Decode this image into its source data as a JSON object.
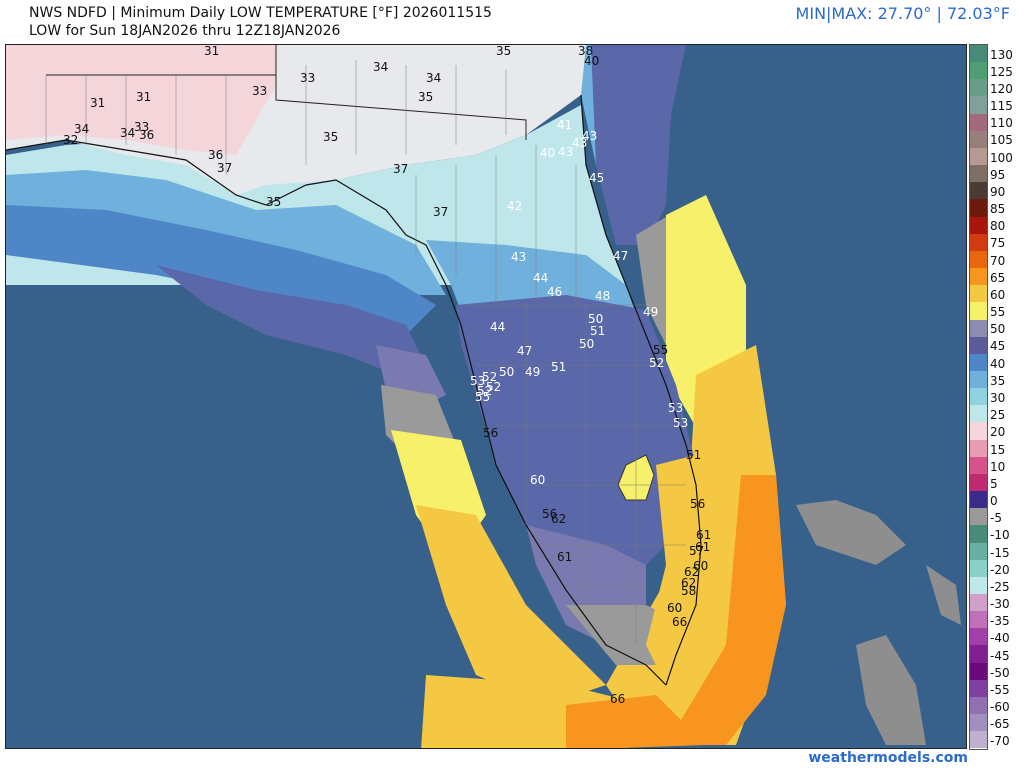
{
  "header": {
    "title_line1": "NWS NDFD | Minimum Daily LOW TEMPERATURE [°F]  2026011515",
    "title_line2": "LOW for Sun 18JAN2026 thru 12Z18JAN2026",
    "minmax": "MIN|MAX:  27.70°  | 72.03°F"
  },
  "footer": {
    "credit": "weathermodels.com"
  },
  "colors": {
    "ocean": "#37608a",
    "north_land": "#e8e9ec",
    "warm_pink": "#f4d5da",
    "light_cyan": "#bfe6ea",
    "aqua": "#8fd3e0",
    "light_blue": "#6fb0dc",
    "blue": "#4f86c8",
    "slate_blue": "#5a67a8",
    "purple": "#5b5b9a",
    "gray": "#9a9a9a",
    "yellow": "#f6f06a",
    "gold": "#f5c843",
    "orange": "#f7951f",
    "bahamas": "#8e8e8e"
  },
  "scale": {
    "labels": [
      "130",
      "125",
      "120",
      "115",
      "110",
      "105",
      "100",
      "95",
      "90",
      "85",
      "80",
      "75",
      "70",
      "65",
      "60",
      "55",
      "50",
      "45",
      "40",
      "35",
      "30",
      "25",
      "20",
      "15",
      "10",
      "5",
      "0",
      "-5",
      "-10",
      "-15",
      "-20",
      "-25",
      "-30",
      "-35",
      "-40",
      "-45",
      "-50",
      "-55",
      "-60",
      "-65",
      "-70"
    ],
    "colors": [
      "#4a8a7a",
      "#4e9d73",
      "#6a9d86",
      "#7fa19a",
      "#a26a7c",
      "#9a7e7e",
      "#b69a92",
      "#7d6e66",
      "#4c3a34",
      "#6e1a0c",
      "#a8160c",
      "#d23a12",
      "#e8660e",
      "#f7951f",
      "#f5c843",
      "#f6f06a",
      "#8c8cb0",
      "#5b5b9a",
      "#4f86c8",
      "#6fb0dc",
      "#8fd3e0",
      "#bfe6ea",
      "#f4d5da",
      "#e89cb0",
      "#d6528a",
      "#c02a70",
      "#3a2a8a",
      "#9a9a9a",
      "#4a8a7a",
      "#6ab0a0",
      "#8ad0c8",
      "#c0e8ea",
      "#d0a0c8",
      "#c070b8",
      "#a040a8",
      "#802090",
      "#6a0a7a",
      "#8040a0",
      "#9070b0",
      "#a090c0",
      "#c0b0d0"
    ]
  },
  "temps": [
    {
      "v": "31"
    },
    {
      "v": "35"
    },
    {
      "v": "38"
    },
    {
      "v": "40"
    },
    {
      "v": "33"
    },
    {
      "v": "34"
    },
    {
      "v": "34"
    },
    {
      "v": "31"
    },
    {
      "v": "31"
    },
    {
      "v": "33"
    },
    {
      "v": "35"
    },
    {
      "v": "34"
    },
    {
      "v": "32"
    },
    {
      "v": "34"
    },
    {
      "v": "33"
    },
    {
      "v": "36"
    },
    {
      "v": "35"
    },
    {
      "v": "41"
    },
    {
      "v": "43"
    },
    {
      "v": "43"
    },
    {
      "v": "40"
    },
    {
      "v": "43"
    },
    {
      "v": "36"
    },
    {
      "v": "37"
    },
    {
      "v": "37"
    },
    {
      "v": "45"
    },
    {
      "v": "35"
    },
    {
      "v": "37"
    },
    {
      "v": "42"
    },
    {
      "v": "47"
    },
    {
      "v": "43"
    },
    {
      "v": "44"
    },
    {
      "v": "46"
    },
    {
      "v": "48"
    },
    {
      "v": "49"
    },
    {
      "v": "50"
    },
    {
      "v": "51"
    },
    {
      "v": "44"
    },
    {
      "v": "50"
    },
    {
      "v": "47"
    },
    {
      "v": "55"
    },
    {
      "v": "52"
    },
    {
      "v": "50"
    },
    {
      "v": "49"
    },
    {
      "v": "51"
    },
    {
      "v": "53"
    },
    {
      "v": "52"
    },
    {
      "v": "52"
    },
    {
      "v": "55"
    },
    {
      "v": "52"
    },
    {
      "v": "53"
    },
    {
      "v": "53"
    },
    {
      "v": "56"
    },
    {
      "v": "51"
    },
    {
      "v": "60"
    },
    {
      "v": "56"
    },
    {
      "v": "56"
    },
    {
      "v": "62"
    },
    {
      "v": "61"
    },
    {
      "v": "61"
    },
    {
      "v": "57"
    },
    {
      "v": "61"
    },
    {
      "v": "60"
    },
    {
      "v": "62"
    },
    {
      "v": "62"
    },
    {
      "v": "58"
    },
    {
      "v": "60"
    },
    {
      "v": "66"
    },
    {
      "v": "66"
    }
  ]
}
